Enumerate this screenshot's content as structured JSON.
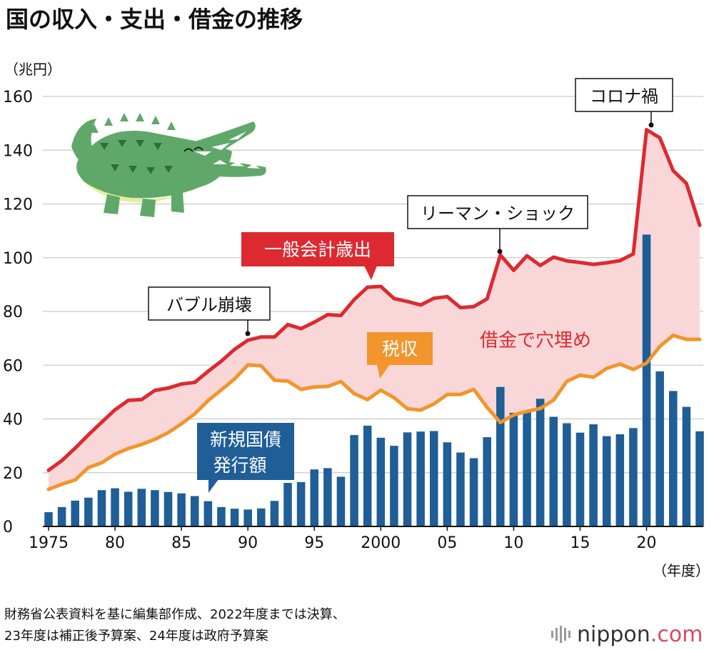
{
  "title": "国の収入・支出・借金の推移",
  "unit_label": "（兆円）",
  "year_label": "（年度）",
  "footnote_line1": "財務省公表資料を基に編集部作成、2022年度までは決算、",
  "footnote_line2": "23年度は補正後予算案、24年度は政府予算案",
  "brand": {
    "name": "nippon",
    "suffix": ".com"
  },
  "colors": {
    "expenditure": "#dc2a30",
    "tax": "#f1952c",
    "bonds": "#1f5e96",
    "gap_fill": "#f9d7d8",
    "grid": "#c9c9c9",
    "crocodile": "#5fa86a"
  },
  "annotations": {
    "bubble": "バブル崩壊",
    "lehman": "リーマン・ショック",
    "corona": "コロナ禍",
    "expenditure": "一般会計歳出",
    "tax": "税収",
    "bonds_line1": "新規国債",
    "bonds_line2": "発行額",
    "gap": "借金で穴埋め"
  },
  "chart_data": {
    "type": "bar+line",
    "title": "国の収入・支出・借金の推移",
    "ylabel": "兆円",
    "xlabel": "年度",
    "ylim": [
      0,
      160
    ],
    "yticks": [
      0,
      20,
      40,
      60,
      80,
      100,
      120,
      140,
      160
    ],
    "x_tick_labels": [
      {
        "year": 1975,
        "label": "1975"
      },
      {
        "year": 1980,
        "label": "80"
      },
      {
        "year": 1985,
        "label": "85"
      },
      {
        "year": 1990,
        "label": "90"
      },
      {
        "year": 1995,
        "label": "95"
      },
      {
        "year": 2000,
        "label": "2000"
      },
      {
        "year": 2005,
        "label": "05"
      },
      {
        "year": 2010,
        "label": "10"
      },
      {
        "year": 2015,
        "label": "15"
      },
      {
        "year": 2020,
        "label": "20"
      }
    ],
    "years": [
      1975,
      1976,
      1977,
      1978,
      1979,
      1980,
      1981,
      1982,
      1983,
      1984,
      1985,
      1986,
      1987,
      1988,
      1989,
      1990,
      1991,
      1992,
      1993,
      1994,
      1995,
      1996,
      1997,
      1998,
      1999,
      2000,
      2001,
      2002,
      2003,
      2004,
      2005,
      2006,
      2007,
      2008,
      2009,
      2010,
      2011,
      2012,
      2013,
      2014,
      2015,
      2016,
      2017,
      2018,
      2019,
      2020,
      2021,
      2022,
      2023,
      2024
    ],
    "series": [
      {
        "name": "一般会計歳出",
        "kind": "line",
        "values": [
          20.9,
          24.5,
          29.1,
          34.1,
          38.8,
          43.4,
          46.9,
          47.2,
          50.6,
          51.5,
          53.0,
          53.6,
          57.7,
          61.5,
          65.9,
          69.3,
          70.5,
          70.5,
          75.1,
          73.6,
          76.0,
          78.8,
          78.5,
          84.4,
          89.0,
          89.3,
          84.8,
          83.7,
          82.4,
          84.9,
          85.5,
          81.4,
          81.8,
          84.7,
          101.0,
          95.3,
          100.7,
          97.1,
          100.2,
          98.8,
          98.2,
          97.5,
          98.1,
          98.9,
          101.4,
          147.6,
          144.6,
          132.4,
          127.6,
          112.1
        ]
      },
      {
        "name": "税収",
        "kind": "line",
        "values": [
          13.8,
          15.7,
          17.3,
          21.9,
          23.7,
          26.9,
          29.0,
          30.5,
          32.4,
          34.9,
          38.2,
          41.9,
          46.8,
          50.8,
          54.9,
          60.1,
          59.8,
          54.4,
          54.1,
          51.0,
          51.9,
          52.1,
          53.9,
          49.4,
          47.2,
          50.7,
          47.9,
          43.8,
          43.3,
          45.6,
          49.1,
          49.1,
          51.0,
          44.3,
          38.7,
          41.5,
          42.8,
          43.9,
          47.0,
          54.0,
          56.3,
          55.5,
          58.8,
          60.4,
          58.4,
          60.8,
          67.0,
          71.1,
          69.6,
          69.6
        ]
      },
      {
        "name": "新規国債発行額",
        "kind": "bar",
        "values": [
          5.3,
          7.2,
          9.6,
          10.7,
          13.5,
          14.2,
          12.9,
          14.0,
          13.5,
          12.8,
          12.3,
          11.3,
          9.4,
          7.2,
          6.6,
          6.3,
          6.7,
          9.5,
          16.2,
          16.5,
          21.2,
          21.7,
          18.5,
          34.0,
          37.5,
          33.0,
          30.0,
          35.0,
          35.3,
          35.5,
          31.3,
          27.5,
          25.4,
          33.2,
          51.9,
          42.3,
          42.8,
          47.5,
          40.8,
          38.4,
          34.9,
          38.0,
          33.6,
          34.3,
          36.6,
          108.6,
          57.7,
          50.4,
          44.5,
          35.4
        ]
      }
    ],
    "annotations": [
      {
        "text": "バブル崩壊",
        "year": 1990
      },
      {
        "text": "リーマン・ショック",
        "year": 2009
      },
      {
        "text": "コロナ禍",
        "year": 2020
      }
    ],
    "shaded_region": "一般会計歳出と税収の差（借金で穴埋め）"
  }
}
